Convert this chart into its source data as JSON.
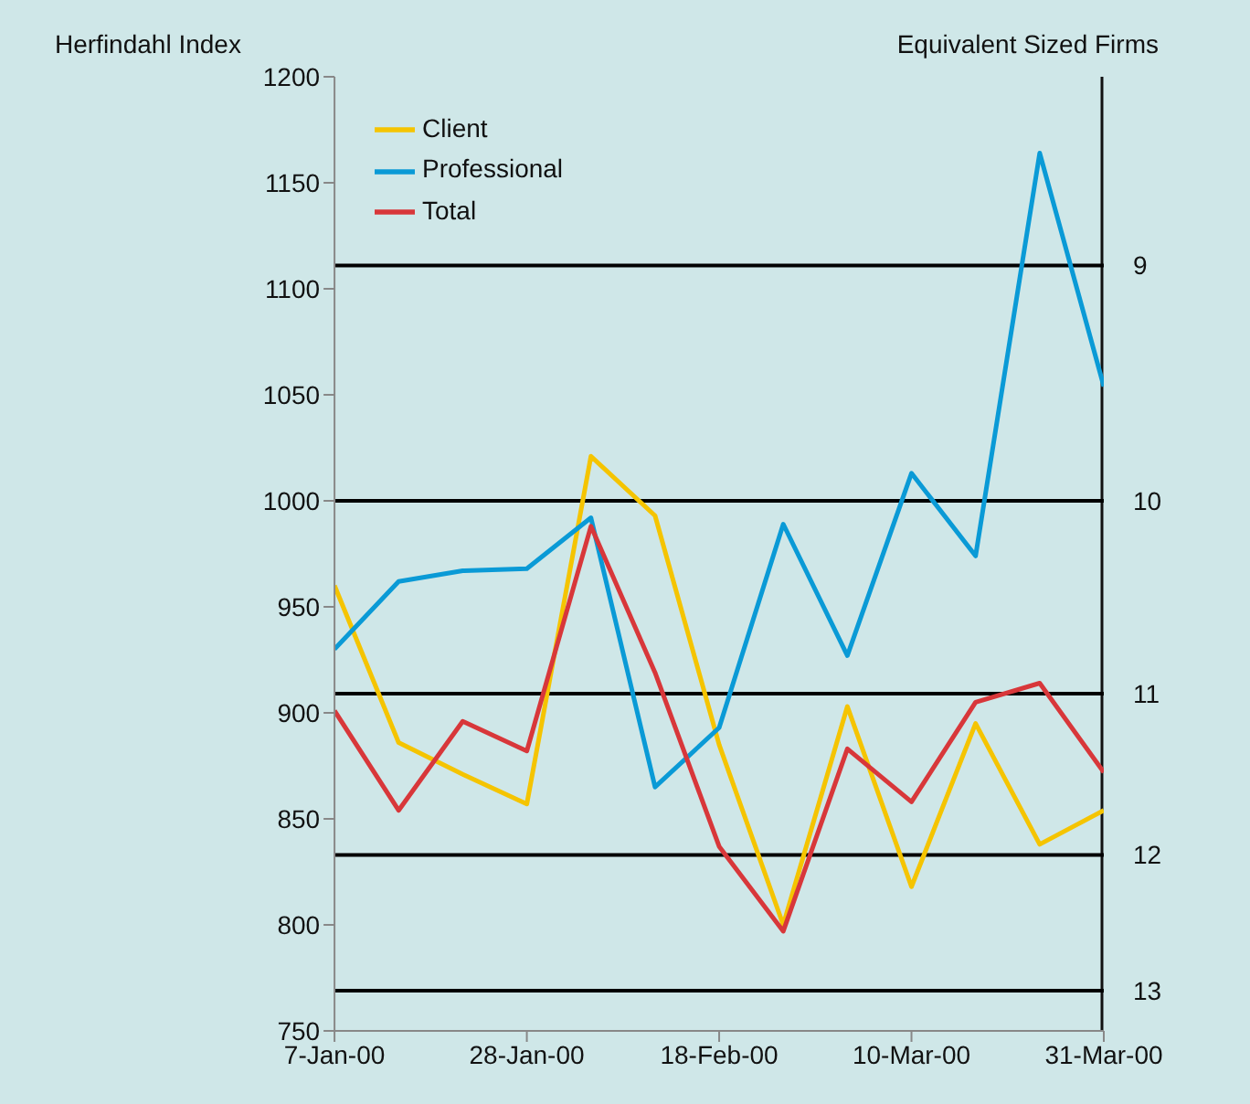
{
  "chart_data": {
    "type": "line",
    "ylabel": "Herfindahl Index",
    "y2label": "Equivalent Sized Firms",
    "categories": [
      "7-Jan-00",
      null,
      null,
      "28-Jan-00",
      null,
      null,
      "18-Feb-00",
      null,
      null,
      "10-Mar-00",
      null,
      null,
      "31-Mar-00"
    ],
    "series": [
      {
        "name": "Client",
        "color": "#f5c400",
        "values": [
          960,
          886,
          871,
          857,
          1021,
          993,
          885,
          800,
          903,
          818,
          895,
          838,
          854
        ]
      },
      {
        "name": "Professional",
        "color": "#0a9ad6",
        "values": [
          930,
          962,
          967,
          968,
          992,
          865,
          893,
          989,
          927,
          1013,
          974,
          1164,
          1054
        ]
      },
      {
        "name": "Total",
        "color": "#d8373a",
        "values": [
          901,
          854,
          896,
          882,
          988,
          919,
          837,
          797,
          883,
          858,
          905,
          914,
          872
        ]
      }
    ],
    "ylim": [
      750,
      1200
    ],
    "yticks": [
      750,
      800,
      850,
      900,
      950,
      1000,
      1050,
      1100,
      1150,
      1200
    ],
    "ref_lines": [
      {
        "axis": "y",
        "value": 1111,
        "color": "#000000"
      },
      {
        "axis": "y",
        "value": 1000,
        "color": "#000000"
      },
      {
        "axis": "y",
        "value": 909,
        "color": "#000000"
      },
      {
        "axis": "y",
        "value": 833,
        "color": "#000000"
      },
      {
        "axis": "y",
        "value": 769,
        "color": "#000000"
      }
    ],
    "annotations": [
      "9",
      "10",
      "11",
      "12",
      "13"
    ],
    "legend": "top left",
    "marker": "none",
    "line_style": "solid"
  }
}
